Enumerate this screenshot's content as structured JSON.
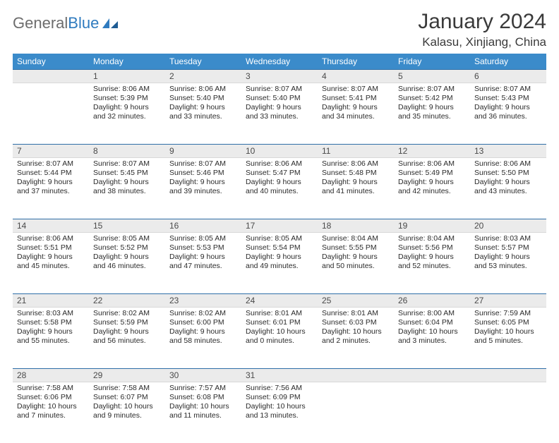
{
  "brand": {
    "part1": "General",
    "part2": "Blue"
  },
  "title": "January 2024",
  "location": "Kalasu, Xinjiang, China",
  "colors": {
    "header_bg": "#3b8bca",
    "header_text": "#ffffff",
    "daynum_bg": "#ebebeb",
    "day_border_top": "#2f6fa8",
    "text": "#2b2b2b",
    "brand_gray": "#6d6d6d",
    "brand_blue": "#2f7bbf"
  },
  "day_headers": [
    "Sunday",
    "Monday",
    "Tuesday",
    "Wednesday",
    "Thursday",
    "Friday",
    "Saturday"
  ],
  "weeks": [
    [
      {
        "n": "",
        "sr": "",
        "ss": "",
        "dl": ""
      },
      {
        "n": "1",
        "sr": "8:06 AM",
        "ss": "5:39 PM",
        "dl": "9 hours and 32 minutes."
      },
      {
        "n": "2",
        "sr": "8:06 AM",
        "ss": "5:40 PM",
        "dl": "9 hours and 33 minutes."
      },
      {
        "n": "3",
        "sr": "8:07 AM",
        "ss": "5:40 PM",
        "dl": "9 hours and 33 minutes."
      },
      {
        "n": "4",
        "sr": "8:07 AM",
        "ss": "5:41 PM",
        "dl": "9 hours and 34 minutes."
      },
      {
        "n": "5",
        "sr": "8:07 AM",
        "ss": "5:42 PM",
        "dl": "9 hours and 35 minutes."
      },
      {
        "n": "6",
        "sr": "8:07 AM",
        "ss": "5:43 PM",
        "dl": "9 hours and 36 minutes."
      }
    ],
    [
      {
        "n": "7",
        "sr": "8:07 AM",
        "ss": "5:44 PM",
        "dl": "9 hours and 37 minutes."
      },
      {
        "n": "8",
        "sr": "8:07 AM",
        "ss": "5:45 PM",
        "dl": "9 hours and 38 minutes."
      },
      {
        "n": "9",
        "sr": "8:07 AM",
        "ss": "5:46 PM",
        "dl": "9 hours and 39 minutes."
      },
      {
        "n": "10",
        "sr": "8:06 AM",
        "ss": "5:47 PM",
        "dl": "9 hours and 40 minutes."
      },
      {
        "n": "11",
        "sr": "8:06 AM",
        "ss": "5:48 PM",
        "dl": "9 hours and 41 minutes."
      },
      {
        "n": "12",
        "sr": "8:06 AM",
        "ss": "5:49 PM",
        "dl": "9 hours and 42 minutes."
      },
      {
        "n": "13",
        "sr": "8:06 AM",
        "ss": "5:50 PM",
        "dl": "9 hours and 43 minutes."
      }
    ],
    [
      {
        "n": "14",
        "sr": "8:06 AM",
        "ss": "5:51 PM",
        "dl": "9 hours and 45 minutes."
      },
      {
        "n": "15",
        "sr": "8:05 AM",
        "ss": "5:52 PM",
        "dl": "9 hours and 46 minutes."
      },
      {
        "n": "16",
        "sr": "8:05 AM",
        "ss": "5:53 PM",
        "dl": "9 hours and 47 minutes."
      },
      {
        "n": "17",
        "sr": "8:05 AM",
        "ss": "5:54 PM",
        "dl": "9 hours and 49 minutes."
      },
      {
        "n": "18",
        "sr": "8:04 AM",
        "ss": "5:55 PM",
        "dl": "9 hours and 50 minutes."
      },
      {
        "n": "19",
        "sr": "8:04 AM",
        "ss": "5:56 PM",
        "dl": "9 hours and 52 minutes."
      },
      {
        "n": "20",
        "sr": "8:03 AM",
        "ss": "5:57 PM",
        "dl": "9 hours and 53 minutes."
      }
    ],
    [
      {
        "n": "21",
        "sr": "8:03 AM",
        "ss": "5:58 PM",
        "dl": "9 hours and 55 minutes."
      },
      {
        "n": "22",
        "sr": "8:02 AM",
        "ss": "5:59 PM",
        "dl": "9 hours and 56 minutes."
      },
      {
        "n": "23",
        "sr": "8:02 AM",
        "ss": "6:00 PM",
        "dl": "9 hours and 58 minutes."
      },
      {
        "n": "24",
        "sr": "8:01 AM",
        "ss": "6:01 PM",
        "dl": "10 hours and 0 minutes."
      },
      {
        "n": "25",
        "sr": "8:01 AM",
        "ss": "6:03 PM",
        "dl": "10 hours and 2 minutes."
      },
      {
        "n": "26",
        "sr": "8:00 AM",
        "ss": "6:04 PM",
        "dl": "10 hours and 3 minutes."
      },
      {
        "n": "27",
        "sr": "7:59 AM",
        "ss": "6:05 PM",
        "dl": "10 hours and 5 minutes."
      }
    ],
    [
      {
        "n": "28",
        "sr": "7:58 AM",
        "ss": "6:06 PM",
        "dl": "10 hours and 7 minutes."
      },
      {
        "n": "29",
        "sr": "7:58 AM",
        "ss": "6:07 PM",
        "dl": "10 hours and 9 minutes."
      },
      {
        "n": "30",
        "sr": "7:57 AM",
        "ss": "6:08 PM",
        "dl": "10 hours and 11 minutes."
      },
      {
        "n": "31",
        "sr": "7:56 AM",
        "ss": "6:09 PM",
        "dl": "10 hours and 13 minutes."
      },
      {
        "n": "",
        "sr": "",
        "ss": "",
        "dl": ""
      },
      {
        "n": "",
        "sr": "",
        "ss": "",
        "dl": ""
      },
      {
        "n": "",
        "sr": "",
        "ss": "",
        "dl": ""
      }
    ]
  ],
  "labels": {
    "sunrise": "Sunrise:",
    "sunset": "Sunset:",
    "daylight": "Daylight:"
  }
}
